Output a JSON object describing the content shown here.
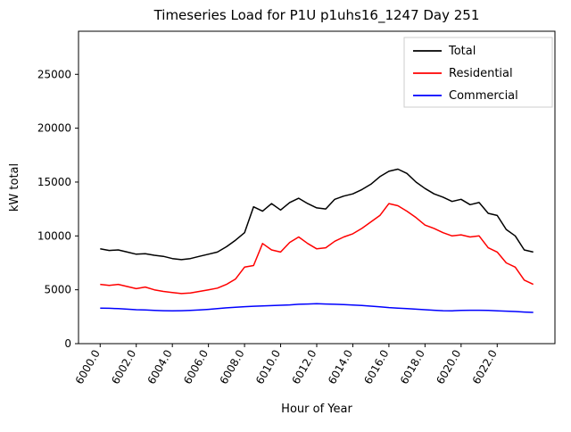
{
  "figure": {
    "title": "Timeseries Load for P1U p1uhs16_1247  Day 251",
    "xlabel": "Hour of Year",
    "ylabel": "kW total"
  },
  "chart_data": {
    "type": "line",
    "title": "Timeseries Load for P1U p1uhs16_1247  Day 251",
    "xlabel": "Hour of Year",
    "ylabel": "kW total",
    "grid": false,
    "xlim": [
      5998.8,
      6025.2
    ],
    "ylim": [
      0,
      29000
    ],
    "xticks": [
      6000,
      6002,
      6004,
      6006,
      6008,
      6010,
      6012,
      6014,
      6016,
      6018,
      6020,
      6022
    ],
    "xtick_labels": [
      "6000.0",
      "6002.0",
      "6004.0",
      "6006.0",
      "6008.0",
      "6010.0",
      "6012.0",
      "6014.0",
      "6016.0",
      "6018.0",
      "6020.0",
      "6022.0"
    ],
    "yticks": [
      0,
      5000,
      10000,
      15000,
      20000,
      25000
    ],
    "ytick_labels": [
      "0",
      "5000",
      "10000",
      "15000",
      "20000",
      "25000"
    ],
    "legend": {
      "position": "upper right",
      "entries": [
        {
          "label": "Total",
          "color": "#000000"
        },
        {
          "label": "Residential",
          "color": "#ff0000"
        },
        {
          "label": "Commercial",
          "color": "#0000ff"
        }
      ]
    },
    "x": [
      6000.0,
      6000.5,
      6001.0,
      6001.5,
      6002.0,
      6002.5,
      6003.0,
      6003.5,
      6004.0,
      6004.5,
      6005.0,
      6005.5,
      6006.0,
      6006.5,
      6007.0,
      6007.5,
      6008.0,
      6008.5,
      6009.0,
      6009.5,
      6010.0,
      6010.5,
      6011.0,
      6011.5,
      6012.0,
      6012.5,
      6013.0,
      6013.5,
      6014.0,
      6014.5,
      6015.0,
      6015.5,
      6016.0,
      6016.5,
      6017.0,
      6017.5,
      6018.0,
      6018.5,
      6019.0,
      6019.5,
      6020.0,
      6020.5,
      6021.0,
      6021.5,
      6022.0,
      6022.5,
      6023.0,
      6023.5,
      6024.0
    ],
    "series": [
      {
        "name": "Total",
        "color": "#000000",
        "values": [
          8800,
          8650,
          8700,
          8500,
          8300,
          8350,
          8200,
          8100,
          7900,
          7800,
          7900,
          8100,
          8300,
          8500,
          9000,
          9600,
          10300,
          12700,
          12300,
          13000,
          12400,
          13100,
          13500,
          13000,
          12600,
          12500,
          13400,
          13700,
          13900,
          14300,
          14800,
          15500,
          16000,
          16200,
          15800,
          15000,
          14400,
          13900,
          13600,
          13200,
          13400,
          12900,
          13100,
          12100,
          11900,
          10600,
          10000,
          8700,
          8500
        ]
      },
      {
        "name": "Residential",
        "color": "#ff0000",
        "values": [
          5500,
          5400,
          5500,
          5300,
          5100,
          5250,
          5000,
          4850,
          4750,
          4650,
          4700,
          4850,
          5000,
          5150,
          5500,
          6000,
          7100,
          7250,
          9300,
          8700,
          8500,
          9400,
          9900,
          9300,
          8800,
          8900,
          9500,
          9900,
          10200,
          10700,
          11300,
          11900,
          13000,
          12800,
          12300,
          11700,
          11000,
          10700,
          10300,
          10000,
          10100,
          9900,
          10000,
          8900,
          8500,
          7500,
          7100,
          5900,
          5500
        ]
      },
      {
        "name": "Commercial",
        "color": "#0000ff",
        "values": [
          3300,
          3280,
          3250,
          3200,
          3150,
          3120,
          3080,
          3060,
          3050,
          3060,
          3080,
          3120,
          3180,
          3250,
          3320,
          3380,
          3430,
          3470,
          3500,
          3530,
          3560,
          3600,
          3650,
          3680,
          3700,
          3680,
          3650,
          3620,
          3580,
          3540,
          3480,
          3420,
          3350,
          3300,
          3250,
          3200,
          3150,
          3100,
          3060,
          3050,
          3080,
          3100,
          3100,
          3080,
          3050,
          3020,
          2980,
          2930,
          2900
        ]
      }
    ]
  }
}
